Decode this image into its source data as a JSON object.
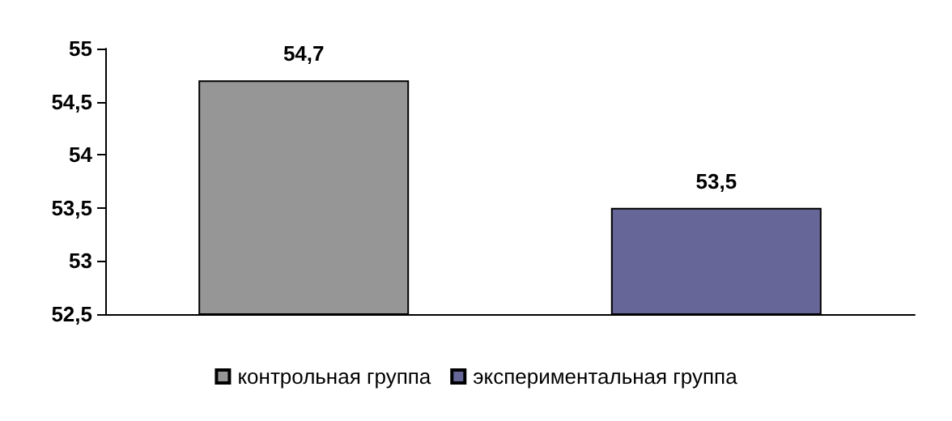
{
  "chart_data": {
    "type": "bar",
    "categories": [
      null
    ],
    "series": [
      {
        "name": "контрольная группа",
        "color": "#969696",
        "values": [
          54.7
        ],
        "value_labels": [
          "54,7"
        ]
      },
      {
        "name": "экспериментальная группа",
        "color": "#666699",
        "values": [
          53.5
        ],
        "value_labels": [
          "53,5"
        ]
      }
    ],
    "ylim": [
      52.5,
      55
    ],
    "yticks": [
      {
        "value": 52.5,
        "label": "52,5"
      },
      {
        "value": 53,
        "label": "53"
      },
      {
        "value": 53.5,
        "label": "53,5"
      },
      {
        "value": 54,
        "label": "54"
      },
      {
        "value": 54.5,
        "label": "54,5"
      },
      {
        "value": 55,
        "label": "55"
      }
    ],
    "grid": false,
    "legend": "bottom"
  }
}
